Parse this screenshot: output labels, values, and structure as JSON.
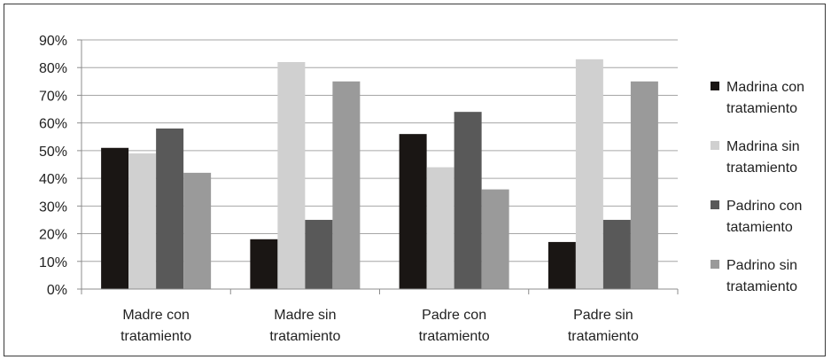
{
  "chart_data": {
    "type": "bar",
    "title": "",
    "xlabel": "",
    "ylabel": "",
    "ylim": [
      0,
      0.9
    ],
    "yticks": [
      "0%",
      "10%",
      "20%",
      "30%",
      "40%",
      "50%",
      "60%",
      "70%",
      "80%",
      "90%"
    ],
    "grid": true,
    "legend_position": "right",
    "categories": [
      [
        "Madre con",
        "tratamiento"
      ],
      [
        "Madre sin",
        "tratamiento"
      ],
      [
        "Padre con",
        "tratamiento"
      ],
      [
        "Padre sin",
        "tratamiento"
      ]
    ],
    "series": [
      {
        "name": [
          "Madrina con",
          "tratamiento"
        ],
        "color": "#1a1614",
        "values": [
          0.51,
          0.18,
          0.56,
          0.17
        ]
      },
      {
        "name": [
          "Madrina sin",
          "tratamiento"
        ],
        "color": "#d0d0d0",
        "values": [
          0.49,
          0.82,
          0.44,
          0.83
        ]
      },
      {
        "name": [
          "Padrino con",
          "tatamiento"
        ],
        "color": "#595959",
        "values": [
          0.58,
          0.25,
          0.64,
          0.25
        ]
      },
      {
        "name": [
          "Padrino sin",
          "tratamiento"
        ],
        "color": "#9a9a9a",
        "values": [
          0.42,
          0.75,
          0.36,
          0.75
        ]
      }
    ]
  }
}
